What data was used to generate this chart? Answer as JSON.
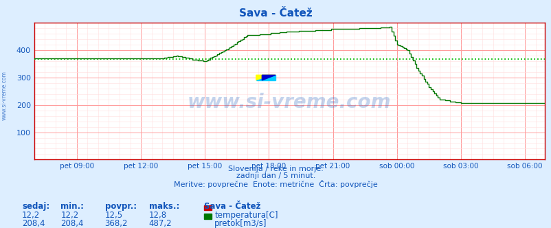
{
  "title": "Sava - Čatež",
  "background_color": "#ddeeff",
  "plot_bg_color": "#ffffff",
  "grid_color_major": "#ff9999",
  "grid_color_minor": "#ffdddd",
  "line_color_flow": "#007700",
  "line_color_temp": "#cc0000",
  "avg_line_color": "#00bb00",
  "avg_value": 368.2,
  "ylim": [
    0,
    500
  ],
  "yticks": [
    100,
    200,
    300,
    400
  ],
  "subtitle1": "Slovenija / reke in morje.",
  "subtitle2": "zadnji dan / 5 minut.",
  "subtitle3": "Meritve: povprečne  Enote: metrične  Črta: povprečje",
  "text_color": "#1155bb",
  "watermark": "www.si-vreme.com",
  "watermark_color": "#1155bb",
  "watermark_alpha": 0.25,
  "legend_title": "Sava - Čatež",
  "legend_items": [
    {
      "label": "temperatura[C]",
      "color": "#cc0000"
    },
    {
      "label": "pretok[m3/s]",
      "color": "#007700"
    }
  ],
  "stats_headers": [
    "sedaj:",
    "min.:",
    "povpr.:",
    "maks.:"
  ],
  "stats_row1": [
    "12,2",
    "12,2",
    "12,5",
    "12,8"
  ],
  "stats_row2": [
    "208,4",
    "208,4",
    "368,2",
    "487,2"
  ],
  "tick_labels": [
    "pet 09:00",
    "pet 12:00",
    "pet 15:00",
    "pet 18:00",
    "pet 21:00",
    "sob 00:00",
    "sob 03:00",
    "sob 06:00"
  ],
  "n_points": 288
}
